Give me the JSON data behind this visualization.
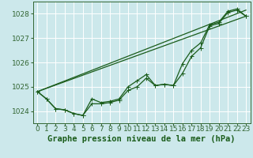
{
  "background_color": "#cce8eb",
  "grid_color": "#ffffff",
  "line_color": "#1a5c1a",
  "marker_color": "#1a5c1a",
  "xlabel": "Graphe pression niveau de la mer (hPa)",
  "xlabel_fontsize": 7.5,
  "tick_fontsize": 6.5,
  "ylabel_ticks": [
    1024,
    1025,
    1026,
    1027,
    1028
  ],
  "xlim": [
    -0.5,
    23.5
  ],
  "ylim": [
    1023.5,
    1028.5
  ],
  "xticks": [
    0,
    1,
    2,
    3,
    4,
    5,
    6,
    7,
    8,
    9,
    10,
    11,
    12,
    13,
    14,
    15,
    16,
    17,
    18,
    19,
    20,
    21,
    22,
    23
  ],
  "series1_x": [
    0,
    1,
    2,
    3,
    4,
    5,
    6,
    7,
    8,
    9,
    10,
    11,
    12,
    13,
    14,
    15,
    16,
    17,
    18,
    19,
    20,
    21,
    22,
    23
  ],
  "series1_y": [
    1024.8,
    1024.5,
    1024.1,
    1024.05,
    1023.9,
    1023.82,
    1024.3,
    1024.3,
    1024.35,
    1024.45,
    1024.85,
    1025.0,
    1025.35,
    1025.05,
    1025.1,
    1025.05,
    1025.55,
    1026.25,
    1026.6,
    1027.5,
    1027.6,
    1028.05,
    1028.15,
    1027.9
  ],
  "series2_x": [
    0,
    1,
    2,
    3,
    4,
    5,
    6,
    7,
    8,
    9,
    10,
    11,
    12,
    13,
    14,
    15,
    16,
    17,
    18,
    19,
    20,
    21,
    22,
    23
  ],
  "series2_y": [
    1024.8,
    1024.5,
    1024.1,
    1024.05,
    1023.9,
    1023.82,
    1024.5,
    1024.35,
    1024.4,
    1024.5,
    1025.0,
    1025.25,
    1025.5,
    1025.05,
    1025.1,
    1025.05,
    1025.95,
    1026.5,
    1026.8,
    1027.55,
    1027.65,
    1028.1,
    1028.2,
    1027.9
  ],
  "series3_x": [
    0,
    23
  ],
  "series3_y": [
    1024.8,
    1027.9
  ],
  "series4_x": [
    0,
    23
  ],
  "series4_y": [
    1024.8,
    1028.15
  ]
}
